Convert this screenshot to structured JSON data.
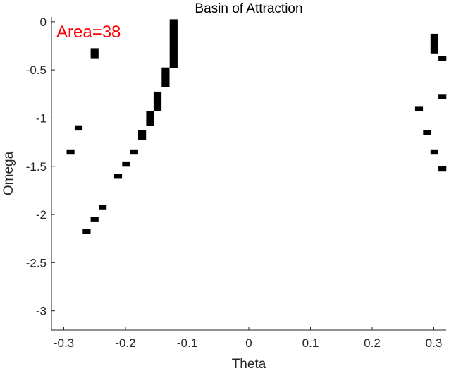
{
  "chart_data": {
    "type": "heatmap",
    "title": "Basin of Attraction",
    "xlabel": "Theta",
    "ylabel": "Omega",
    "xlim": [
      -0.32,
      0.32
    ],
    "ylim": [
      -3.2,
      0.05
    ],
    "xticks": [
      -0.3,
      -0.2,
      -0.1,
      0,
      0.1,
      0.2,
      0.3
    ],
    "xtick_labels": [
      "-0.3",
      "-0.2",
      "-0.1",
      "0",
      "0.1",
      "0.2",
      "0.3"
    ],
    "yticks": [
      0,
      -0.5,
      -1,
      -1.5,
      -2,
      -2.5,
      -3
    ],
    "ytick_labels": [
      "0",
      "-0.5",
      "-1",
      "-1.5",
      "-2",
      "-2.5",
      "-3"
    ],
    "annotation": {
      "text": "Area=38",
      "color": "#ff0000"
    },
    "cell_color": "#000000",
    "cell_width": 0.0128,
    "cell_height": 0.05,
    "cells": [
      {
        "theta": -0.122,
        "omega": 0.0
      },
      {
        "theta": -0.122,
        "omega": -0.05
      },
      {
        "theta": -0.122,
        "omega": -0.1
      },
      {
        "theta": -0.122,
        "omega": -0.15
      },
      {
        "theta": -0.122,
        "omega": -0.2
      },
      {
        "theta": -0.122,
        "omega": -0.25
      },
      {
        "theta": -0.122,
        "omega": -0.3
      },
      {
        "theta": -0.122,
        "omega": -0.35
      },
      {
        "theta": -0.122,
        "omega": -0.4
      },
      {
        "theta": -0.122,
        "omega": -0.45
      },
      {
        "theta": -0.135,
        "omega": -0.5
      },
      {
        "theta": -0.135,
        "omega": -0.55
      },
      {
        "theta": -0.135,
        "omega": -0.6
      },
      {
        "theta": -0.135,
        "omega": -0.65
      },
      {
        "theta": -0.148,
        "omega": -0.75
      },
      {
        "theta": -0.148,
        "omega": -0.8
      },
      {
        "theta": -0.148,
        "omega": -0.85
      },
      {
        "theta": -0.148,
        "omega": -0.9
      },
      {
        "theta": -0.16,
        "omega": -0.95
      },
      {
        "theta": -0.16,
        "omega": -1.0
      },
      {
        "theta": -0.16,
        "omega": -1.05
      },
      {
        "theta": -0.173,
        "omega": -1.15
      },
      {
        "theta": -0.173,
        "omega": -1.2
      },
      {
        "theta": -0.186,
        "omega": -1.35
      },
      {
        "theta": -0.199,
        "omega": -1.475
      },
      {
        "theta": -0.212,
        "omega": -1.6
      },
      {
        "theta": -0.237,
        "omega": -1.925
      },
      {
        "theta": -0.25,
        "omega": -2.05
      },
      {
        "theta": -0.263,
        "omega": -2.175
      },
      {
        "theta": -0.289,
        "omega": -1.35
      },
      {
        "theta": -0.276,
        "omega": -1.1
      },
      {
        "theta": -0.25,
        "omega": -0.3
      },
      {
        "theta": -0.25,
        "omega": -0.35
      },
      {
        "theta": 0.301,
        "omega": -0.15
      },
      {
        "theta": 0.301,
        "omega": -0.2
      },
      {
        "theta": 0.301,
        "omega": -0.25
      },
      {
        "theta": 0.301,
        "omega": -0.3
      },
      {
        "theta": 0.314,
        "omega": -0.38
      },
      {
        "theta": 0.314,
        "omega": -0.775
      },
      {
        "theta": 0.276,
        "omega": -0.9
      },
      {
        "theta": 0.289,
        "omega": -1.15
      },
      {
        "theta": 0.301,
        "omega": -1.35
      },
      {
        "theta": 0.314,
        "omega": -1.525
      }
    ]
  }
}
